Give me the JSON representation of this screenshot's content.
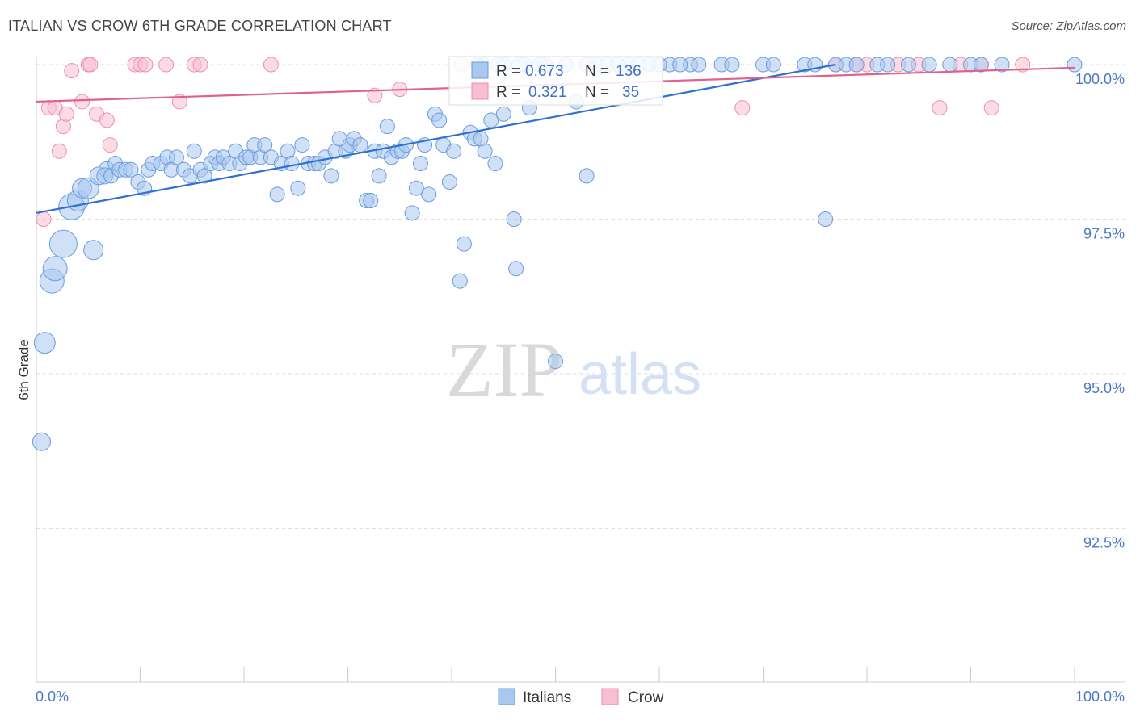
{
  "header": {
    "title": "ITALIAN VS CROW 6TH GRADE CORRELATION CHART",
    "source": "Source: ZipAtlas.com"
  },
  "watermark": {
    "zip": "ZIP",
    "atlas": "atlas"
  },
  "colors": {
    "blue_fill": "#a9c8ef",
    "blue_stroke": "#6b9be0",
    "blue_line": "#2e6fd1",
    "pink_fill": "#f7bfd0",
    "pink_stroke": "#ee8fae",
    "pink_line": "#e0628c",
    "grid": "#dddddd",
    "tick_text": "#4a78c2"
  },
  "legend": {
    "rows": [
      {
        "r_label": "R = ",
        "r_value": "0.673",
        "n_label": "N = ",
        "n_value": "136"
      },
      {
        "r_label": "R = ",
        "r_value": "0.321",
        "n_label": "N = ",
        "n_value": "35"
      }
    ],
    "bottom": [
      "Italians",
      "Crow"
    ]
  },
  "chart_data": {
    "type": "scatter",
    "ylabel": "6th Grade",
    "xlabel": "",
    "xlim": [
      0,
      100
    ],
    "ylim": [
      90.0,
      100.1
    ],
    "x_tick_labels": [
      "0.0%",
      "100.0%"
    ],
    "y_ticks": [
      {
        "value": 100.0,
        "label": "100.0%"
      },
      {
        "value": 97.5,
        "label": "97.5%"
      },
      {
        "value": 95.0,
        "label": "95.0%"
      },
      {
        "value": 92.5,
        "label": "92.5%"
      }
    ],
    "series": [
      {
        "name": "Italians",
        "R": 0.673,
        "N": 136,
        "trend": {
          "x0": 0.0,
          "y0": 97.6,
          "x1": 77.0,
          "y1": 100.0
        },
        "points": [
          [
            0.5,
            93.9,
            11
          ],
          [
            0.8,
            95.5,
            13
          ],
          [
            1.5,
            96.5,
            15
          ],
          [
            1.8,
            96.7,
            15
          ],
          [
            2.6,
            97.1,
            17
          ],
          [
            3.4,
            97.7,
            16
          ],
          [
            4.0,
            97.8,
            13
          ],
          [
            4.4,
            98.0,
            12
          ],
          [
            5.0,
            98.0,
            13
          ],
          [
            5.5,
            97.0,
            12
          ],
          [
            6.0,
            98.2,
            11
          ],
          [
            6.8,
            98.3,
            10
          ],
          [
            6.6,
            98.2,
            10
          ],
          [
            7.2,
            98.2,
            9
          ],
          [
            7.6,
            98.4,
            9
          ],
          [
            8.0,
            98.3,
            9
          ],
          [
            8.6,
            98.3,
            9
          ],
          [
            9.1,
            98.3,
            9
          ],
          [
            9.8,
            98.1,
            9
          ],
          [
            10.4,
            98.0,
            9
          ],
          [
            10.8,
            98.3,
            9
          ],
          [
            11.2,
            98.4,
            9
          ],
          [
            12.0,
            98.4,
            9
          ],
          [
            12.6,
            98.5,
            9
          ],
          [
            13.0,
            98.3,
            9
          ],
          [
            13.5,
            98.5,
            9
          ],
          [
            14.2,
            98.3,
            9
          ],
          [
            14.8,
            98.2,
            9
          ],
          [
            15.2,
            98.6,
            9
          ],
          [
            15.8,
            98.3,
            9
          ],
          [
            16.2,
            98.2,
            9
          ],
          [
            16.8,
            98.4,
            9
          ],
          [
            17.2,
            98.5,
            9
          ],
          [
            17.6,
            98.4,
            9
          ],
          [
            18.0,
            98.5,
            9
          ],
          [
            18.6,
            98.4,
            9
          ],
          [
            19.2,
            98.6,
            9
          ],
          [
            19.6,
            98.4,
            9
          ],
          [
            20.2,
            98.5,
            9
          ],
          [
            20.6,
            98.5,
            9
          ],
          [
            21.0,
            98.7,
            9
          ],
          [
            21.6,
            98.5,
            9
          ],
          [
            22.0,
            98.7,
            9
          ],
          [
            22.6,
            98.5,
            9
          ],
          [
            23.2,
            97.9,
            9
          ],
          [
            23.6,
            98.4,
            9
          ],
          [
            24.2,
            98.6,
            9
          ],
          [
            24.6,
            98.4,
            9
          ],
          [
            25.2,
            98.0,
            9
          ],
          [
            25.6,
            98.7,
            9
          ],
          [
            26.2,
            98.4,
            9
          ],
          [
            26.8,
            98.4,
            9
          ],
          [
            27.2,
            98.4,
            9
          ],
          [
            27.8,
            98.5,
            9
          ],
          [
            28.4,
            98.2,
            9
          ],
          [
            28.8,
            98.6,
            9
          ],
          [
            29.2,
            98.8,
            9
          ],
          [
            29.8,
            98.6,
            9
          ],
          [
            30.2,
            98.7,
            9
          ],
          [
            30.6,
            98.8,
            9
          ],
          [
            31.2,
            98.7,
            9
          ],
          [
            31.8,
            97.8,
            9
          ],
          [
            32.2,
            97.8,
            9
          ],
          [
            32.6,
            98.6,
            9
          ],
          [
            33.0,
            98.2,
            9
          ],
          [
            33.4,
            98.6,
            9
          ],
          [
            33.8,
            99.0,
            9
          ],
          [
            34.2,
            98.5,
            9
          ],
          [
            34.8,
            98.6,
            9
          ],
          [
            35.2,
            98.6,
            9
          ],
          [
            35.6,
            98.7,
            9
          ],
          [
            36.2,
            97.6,
            9
          ],
          [
            36.6,
            98.0,
            9
          ],
          [
            37.0,
            98.4,
            9
          ],
          [
            37.4,
            98.7,
            9
          ],
          [
            37.8,
            97.9,
            9
          ],
          [
            38.4,
            99.2,
            9
          ],
          [
            38.8,
            99.1,
            9
          ],
          [
            39.2,
            98.7,
            9
          ],
          [
            39.8,
            98.1,
            9
          ],
          [
            40.2,
            98.6,
            9
          ],
          [
            40.8,
            96.5,
            9
          ],
          [
            41.2,
            97.1,
            9
          ],
          [
            41.8,
            98.9,
            9
          ],
          [
            42.2,
            98.8,
            9
          ],
          [
            42.8,
            98.8,
            9
          ],
          [
            43.2,
            98.6,
            9
          ],
          [
            43.8,
            99.1,
            9
          ],
          [
            44.2,
            98.4,
            9
          ],
          [
            45.0,
            99.2,
            9
          ],
          [
            46.0,
            97.5,
            9
          ],
          [
            46.2,
            96.7,
            9
          ],
          [
            47.5,
            99.3,
            9
          ],
          [
            50.0,
            95.2,
            9
          ],
          [
            52.0,
            99.4,
            9
          ],
          [
            53.0,
            98.2,
            9
          ],
          [
            43.0,
            100.0,
            9
          ],
          [
            45.0,
            100.0,
            9
          ],
          [
            47.0,
            100.0,
            9
          ],
          [
            49.0,
            100.0,
            9
          ],
          [
            51.0,
            100.0,
            9
          ],
          [
            53.0,
            100.0,
            9
          ],
          [
            55.0,
            100.0,
            9
          ],
          [
            57.0,
            100.0,
            9
          ],
          [
            59.0,
            100.0,
            9
          ],
          [
            61.0,
            100.0,
            9
          ],
          [
            63.0,
            100.0,
            9
          ],
          [
            63.8,
            100.0,
            9
          ],
          [
            66.0,
            100.0,
            9
          ],
          [
            67.0,
            100.0,
            9
          ],
          [
            70.0,
            100.0,
            9
          ],
          [
            71.0,
            100.0,
            9
          ],
          [
            74.0,
            100.0,
            9
          ],
          [
            75.0,
            100.0,
            9
          ],
          [
            76.0,
            97.5,
            9
          ],
          [
            77.0,
            100.0,
            9
          ],
          [
            78.0,
            100.0,
            9
          ],
          [
            79.0,
            100.0,
            9
          ],
          [
            81.0,
            100.0,
            9
          ],
          [
            82.0,
            100.0,
            9
          ],
          [
            84.0,
            100.0,
            9
          ],
          [
            86.0,
            100.0,
            9
          ],
          [
            88.0,
            100.0,
            9
          ],
          [
            90.0,
            100.0,
            9
          ],
          [
            91.0,
            100.0,
            9
          ],
          [
            93.0,
            100.0,
            9
          ],
          [
            100.0,
            100.0,
            9
          ],
          [
            42.5,
            100.0,
            9
          ],
          [
            44.5,
            100.0,
            9
          ],
          [
            46.5,
            100.0,
            9
          ],
          [
            48.5,
            100.0,
            9
          ],
          [
            54.0,
            100.0,
            9
          ],
          [
            56.0,
            100.0,
            9
          ],
          [
            58.0,
            100.0,
            9
          ],
          [
            60.0,
            100.0,
            9
          ],
          [
            62.0,
            100.0,
            9
          ]
        ]
      },
      {
        "name": "Crow",
        "R": 0.321,
        "N": 35,
        "trend": {
          "x0": 0.0,
          "y0": 99.4,
          "x1": 100.0,
          "y1": 99.95
        },
        "points": [
          [
            0.7,
            97.5,
            9
          ],
          [
            1.2,
            99.3,
            9
          ],
          [
            1.8,
            99.3,
            9
          ],
          [
            2.2,
            98.6,
            9
          ],
          [
            2.6,
            99.0,
            9
          ],
          [
            2.9,
            99.2,
            9
          ],
          [
            3.4,
            99.9,
            9
          ],
          [
            4.4,
            99.4,
            9
          ],
          [
            5.0,
            100.0,
            9
          ],
          [
            5.2,
            100.0,
            9
          ],
          [
            5.8,
            99.2,
            9
          ],
          [
            6.8,
            99.1,
            9
          ],
          [
            7.1,
            98.7,
            9
          ],
          [
            9.5,
            100.0,
            9
          ],
          [
            10.0,
            100.0,
            9
          ],
          [
            10.5,
            100.0,
            9
          ],
          [
            12.5,
            100.0,
            9
          ],
          [
            13.8,
            99.4,
            9
          ],
          [
            15.2,
            100.0,
            9
          ],
          [
            15.8,
            100.0,
            9
          ],
          [
            22.6,
            100.0,
            9
          ],
          [
            32.6,
            99.5,
            9
          ],
          [
            35.0,
            99.6,
            9
          ],
          [
            41.0,
            100.0,
            9
          ],
          [
            68.0,
            99.3,
            9
          ],
          [
            77.0,
            100.0,
            9
          ],
          [
            79.0,
            100.0,
            9
          ],
          [
            80.0,
            100.0,
            9
          ],
          [
            83.0,
            100.0,
            9
          ],
          [
            85.0,
            100.0,
            9
          ],
          [
            87.0,
            99.3,
            9
          ],
          [
            89.0,
            100.0,
            9
          ],
          [
            91.0,
            100.0,
            9
          ],
          [
            92.0,
            99.3,
            9
          ],
          [
            95.0,
            100.0,
            9
          ]
        ]
      }
    ]
  }
}
